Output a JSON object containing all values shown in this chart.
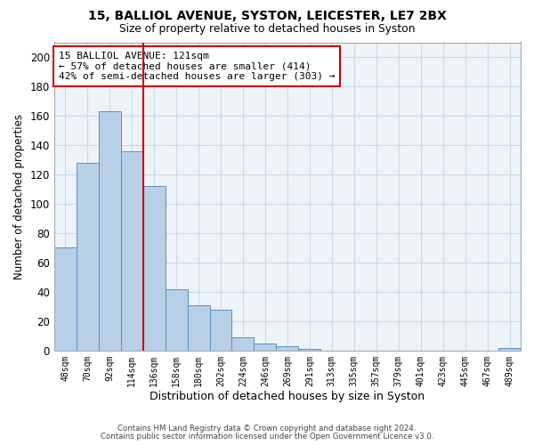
{
  "title1": "15, BALLIOL AVENUE, SYSTON, LEICESTER, LE7 2BX",
  "title2": "Size of property relative to detached houses in Syston",
  "xlabel": "Distribution of detached houses by size in Syston",
  "ylabel": "Number of detached properties",
  "categories": [
    "48sqm",
    "70sqm",
    "92sqm",
    "114sqm",
    "136sqm",
    "158sqm",
    "180sqm",
    "202sqm",
    "224sqm",
    "246sqm",
    "269sqm",
    "291sqm",
    "313sqm",
    "335sqm",
    "357sqm",
    "379sqm",
    "401sqm",
    "423sqm",
    "445sqm",
    "467sqm",
    "489sqm"
  ],
  "values": [
    70,
    128,
    163,
    136,
    112,
    42,
    31,
    28,
    9,
    5,
    3,
    1,
    0,
    0,
    0,
    0,
    0,
    0,
    0,
    0,
    2
  ],
  "bar_color": "#b8cfe8",
  "bar_edge_color": "#5a8fc0",
  "grid_color": "#c8d8e8",
  "background_color": "#ffffff",
  "vline_x": 3.5,
  "vline_color": "#cc0000",
  "ann_line1": "15 BALLIOL AVENUE: 121sqm",
  "ann_line2": "← 57% of detached houses are smaller (414)",
  "ann_line3": "42% of semi-detached houses are larger (303) →",
  "annotation_box_edge_color": "#cc0000",
  "footer1": "Contains HM Land Registry data © Crown copyright and database right 2024.",
  "footer2": "Contains public sector information licensed under the Open Government Licence v3.0.",
  "ylim": [
    0,
    210
  ],
  "yticks": [
    0,
    20,
    40,
    60,
    80,
    100,
    120,
    140,
    160,
    180,
    200
  ]
}
